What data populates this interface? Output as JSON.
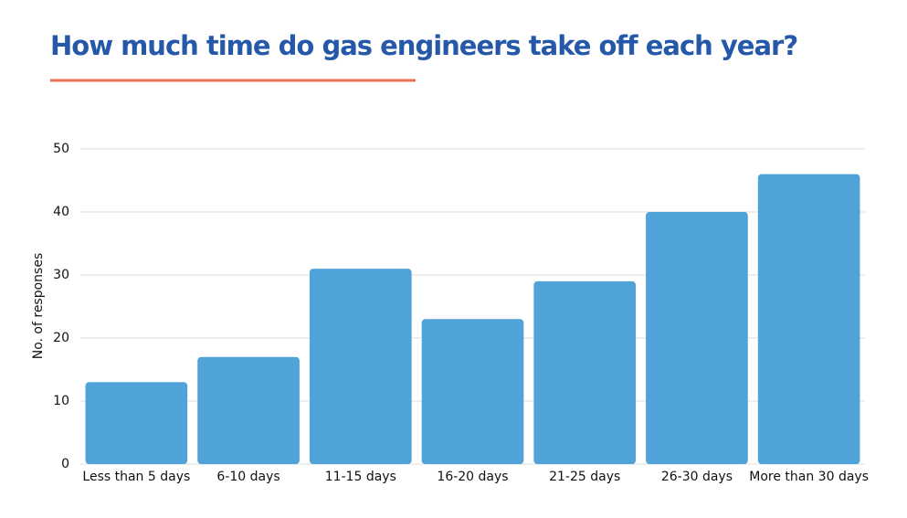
{
  "chart_data": {
    "type": "bar",
    "title": "How much time do gas engineers take off each year?",
    "y_label": "No. of responses",
    "categories": [
      "Less than 5 days",
      "6-10 days",
      "11-15 days",
      "16-20 days",
      "21-25 days",
      "26-30 days",
      "More than 30 days"
    ],
    "values": [
      13,
      17,
      31,
      23,
      29,
      40,
      46
    ],
    "color": "#50a3d9",
    "ylim": [
      0,
      50
    ],
    "yticks": [
      0,
      10,
      20,
      30,
      40,
      50
    ],
    "grid": true
  }
}
